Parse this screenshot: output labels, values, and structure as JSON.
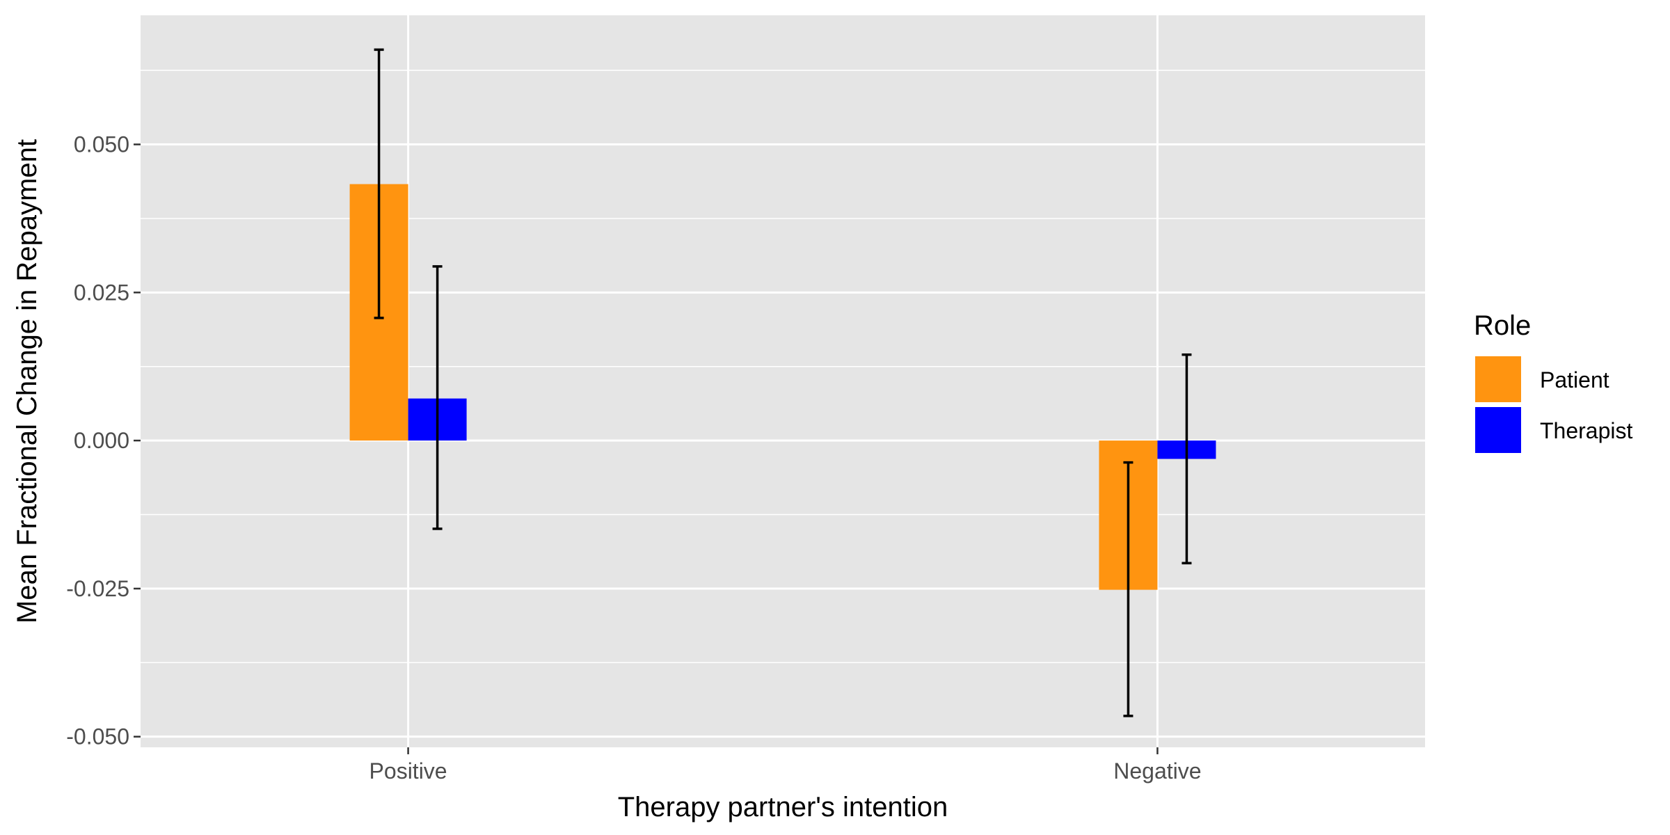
{
  "chart_data": {
    "type": "bar",
    "title": "",
    "xlabel": "Therapy partner's intention",
    "ylabel": "Mean Fractional Change in Repayment",
    "categories": [
      "Positive",
      "Negative"
    ],
    "ylim": [
      -0.0518,
      0.0718
    ],
    "yticks": [
      -0.05,
      -0.025,
      0.0,
      0.025,
      0.05
    ],
    "ytick_labels": [
      "-0.050",
      "-0.025",
      "0.000",
      "0.025",
      "0.050"
    ],
    "grid": true,
    "legend": {
      "title": "Role",
      "position": "right"
    },
    "series": [
      {
        "name": "Patient",
        "color": "#FF9410",
        "values": [
          0.0433,
          -0.0252
        ],
        "error_low": [
          0.0207,
          -0.0465
        ],
        "error_high": [
          0.066,
          -0.0037
        ]
      },
      {
        "name": "Therapist",
        "color": "#0000FF",
        "values": [
          0.0071,
          -0.0031
        ],
        "error_low": [
          -0.0149,
          -0.0207
        ],
        "error_high": [
          0.0294,
          0.0145
        ]
      }
    ]
  },
  "colors": {
    "panel_background": "#E5E5E5",
    "grid": "#FFFFFF",
    "error_bar": "#000000"
  }
}
